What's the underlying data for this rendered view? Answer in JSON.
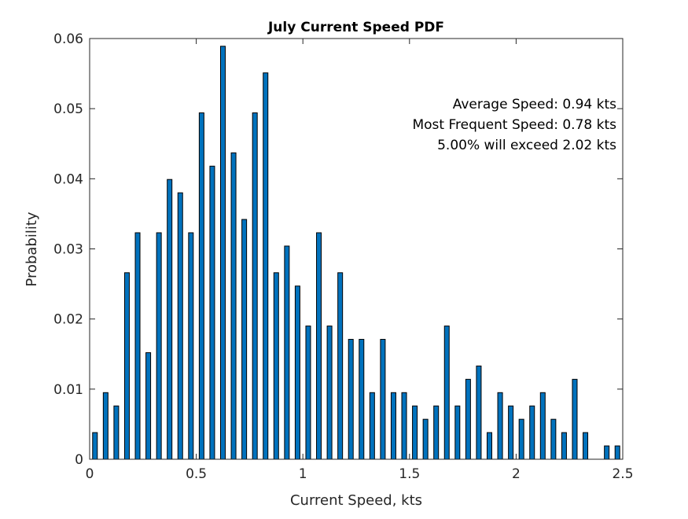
{
  "chart_data": {
    "type": "bar",
    "title": "July Current Speed PDF",
    "xlabel": "Current Speed, kts",
    "ylabel": "Probability",
    "xlim": [
      0,
      2.5
    ],
    "ylim": [
      0,
      0.06
    ],
    "xticks": [
      "0",
      "0.5",
      "1",
      "1.5",
      "2",
      "2.5"
    ],
    "xtick_values": [
      0,
      0.5,
      1,
      1.5,
      2,
      2.5
    ],
    "yticks": [
      "0",
      "0.01",
      "0.02",
      "0.03",
      "0.04",
      "0.05",
      "0.06"
    ],
    "ytick_values": [
      0,
      0.01,
      0.02,
      0.03,
      0.04,
      0.05,
      0.06
    ],
    "grid": false,
    "bar_color": "#0072BD",
    "x": [
      0.025,
      0.075,
      0.125,
      0.175,
      0.225,
      0.275,
      0.325,
      0.375,
      0.425,
      0.475,
      0.525,
      0.575,
      0.625,
      0.675,
      0.725,
      0.775,
      0.825,
      0.875,
      0.925,
      0.975,
      1.025,
      1.075,
      1.125,
      1.175,
      1.225,
      1.275,
      1.325,
      1.375,
      1.425,
      1.475,
      1.525,
      1.575,
      1.625,
      1.675,
      1.725,
      1.775,
      1.825,
      1.875,
      1.925,
      1.975,
      2.025,
      2.075,
      2.125,
      2.175,
      2.225,
      2.275,
      2.325,
      2.375,
      2.425,
      2.475
    ],
    "values": [
      0.0038,
      0.0095,
      0.0076,
      0.0266,
      0.0323,
      0.0152,
      0.0323,
      0.0399,
      0.038,
      0.0323,
      0.0494,
      0.0418,
      0.0589,
      0.0437,
      0.0342,
      0.0494,
      0.0551,
      0.0266,
      0.0304,
      0.0247,
      0.019,
      0.0323,
      0.019,
      0.0266,
      0.0171,
      0.0171,
      0.0095,
      0.0171,
      0.0095,
      0.0095,
      0.0076,
      0.0057,
      0.0076,
      0.019,
      0.0076,
      0.0114,
      0.0133,
      0.0038,
      0.0095,
      0.0076,
      0.0057,
      0.0076,
      0.0095,
      0.0057,
      0.0038,
      0.0114,
      0.0038,
      0,
      0.0019,
      0.0019
    ],
    "annotations": [
      "Average Speed: 0.94 kts",
      "Most Frequent Speed: 0.78 kts",
      "5.00% will exceed 2.02 kts"
    ]
  }
}
